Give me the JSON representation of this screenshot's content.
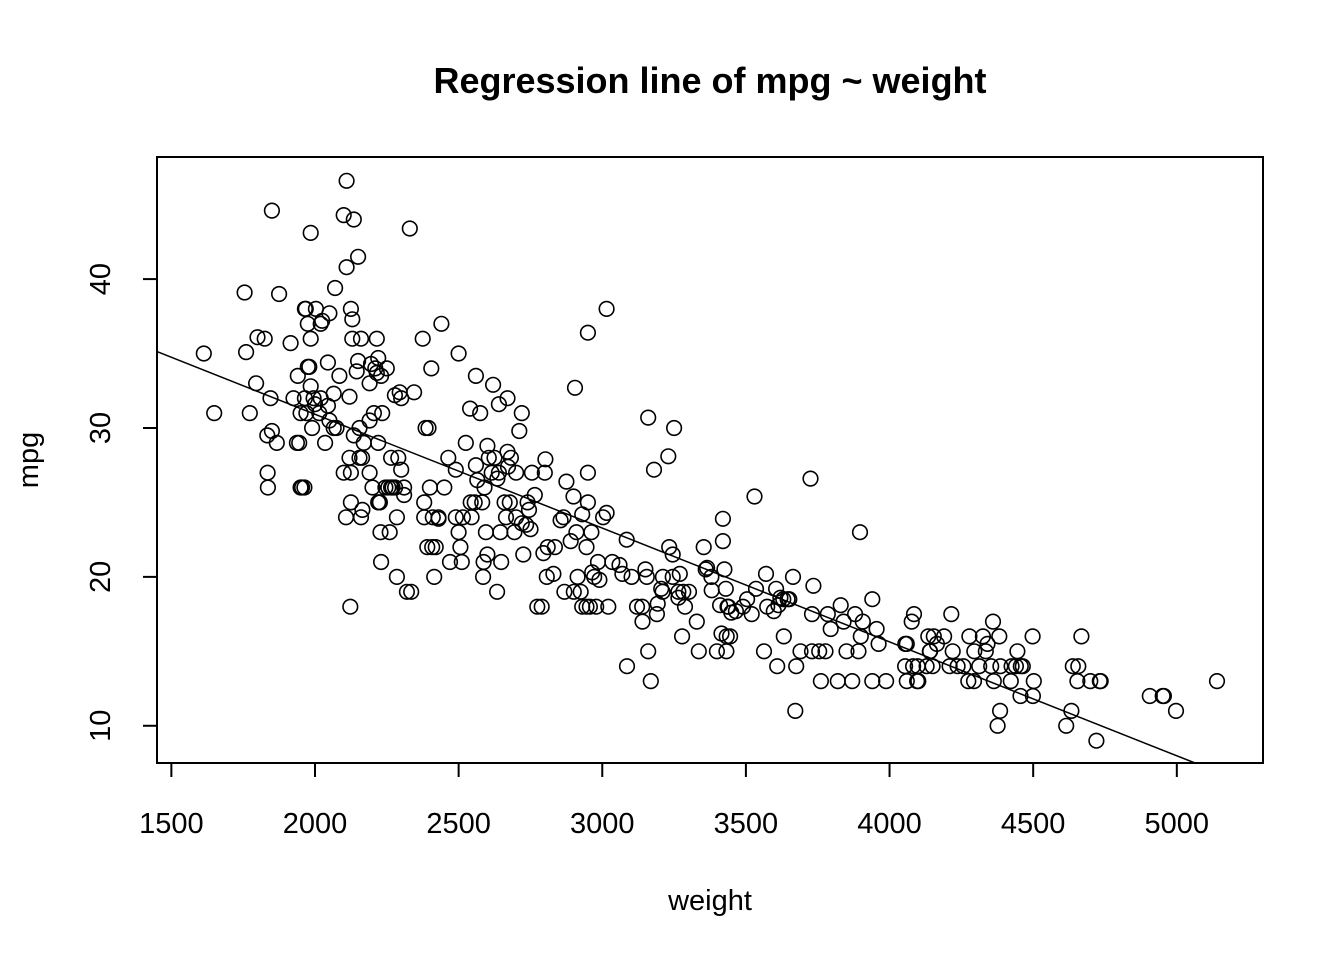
{
  "chart_data": {
    "type": "scatter",
    "title": "Regression line of mpg ~ weight",
    "xlabel": "weight",
    "ylabel": "mpg",
    "xlim": [
      1450,
      5300
    ],
    "ylim": [
      7.5,
      48.2
    ],
    "xticks": [
      1500,
      2000,
      2500,
      3000,
      3500,
      4000,
      4500,
      5000
    ],
    "yticks": [
      10,
      20,
      30,
      40
    ],
    "grid": false,
    "regression_line": {
      "intercept": 46.22,
      "slope": -0.007647
    },
    "points": [
      [
        1613,
        35
      ],
      [
        1649,
        31
      ],
      [
        1755,
        39.1
      ],
      [
        1760,
        35.1
      ],
      [
        1773,
        31
      ],
      [
        1795,
        33
      ],
      [
        1800,
        36.1
      ],
      [
        1825,
        36
      ],
      [
        1834,
        29.5
      ],
      [
        1835,
        27
      ],
      [
        1836,
        26
      ],
      [
        1845,
        32
      ],
      [
        1850,
        44.6
      ],
      [
        1850,
        29.8
      ],
      [
        1867,
        29
      ],
      [
        1875,
        39
      ],
      [
        1915,
        35.7
      ],
      [
        1925,
        32
      ],
      [
        1937,
        29
      ],
      [
        1940,
        33.5
      ],
      [
        1945,
        29
      ],
      [
        1950,
        31
      ],
      [
        1950,
        26
      ],
      [
        1955,
        26
      ],
      [
        1963,
        26
      ],
      [
        1965,
        32
      ],
      [
        1965,
        38
      ],
      [
        1968,
        38
      ],
      [
        1970,
        31
      ],
      [
        1975,
        34.1
      ],
      [
        1975,
        37
      ],
      [
        1980,
        34.1
      ],
      [
        1985,
        36
      ],
      [
        1985,
        32.8
      ],
      [
        1985,
        43.1
      ],
      [
        1990,
        30
      ],
      [
        1995,
        32
      ],
      [
        2000,
        31.6
      ],
      [
        2003,
        38
      ],
      [
        2015,
        31
      ],
      [
        2020,
        37
      ],
      [
        2020,
        32
      ],
      [
        2025,
        37.2
      ],
      [
        2035,
        29
      ],
      [
        2045,
        31.5
      ],
      [
        2045,
        34.4
      ],
      [
        2050,
        37.7
      ],
      [
        2050,
        30.5
      ],
      [
        2065,
        32.3
      ],
      [
        2065,
        30
      ],
      [
        2070,
        39.4
      ],
      [
        2075,
        30
      ],
      [
        2085,
        33.5
      ],
      [
        2100,
        44.3
      ],
      [
        2100,
        27
      ],
      [
        2110,
        46.6
      ],
      [
        2110,
        40.8
      ],
      [
        2108,
        24
      ],
      [
        2120,
        32.1
      ],
      [
        2120,
        28
      ],
      [
        2123,
        18
      ],
      [
        2125,
        38
      ],
      [
        2125,
        25
      ],
      [
        2125,
        27
      ],
      [
        2130,
        37.3
      ],
      [
        2130,
        36
      ],
      [
        2135,
        44
      ],
      [
        2135,
        29.5
      ],
      [
        2145,
        33.8
      ],
      [
        2150,
        41.5
      ],
      [
        2150,
        34.5
      ],
      [
        2155,
        30
      ],
      [
        2155,
        28
      ],
      [
        2160,
        36
      ],
      [
        2160,
        24
      ],
      [
        2164,
        28
      ],
      [
        2165,
        24.5
      ],
      [
        2170,
        29
      ],
      [
        2190,
        33
      ],
      [
        2190,
        30.5
      ],
      [
        2190,
        27
      ],
      [
        2195,
        34.3
      ],
      [
        2200,
        26
      ],
      [
        2205,
        31
      ],
      [
        2210,
        34
      ],
      [
        2215,
        36
      ],
      [
        2215,
        33.7
      ],
      [
        2220,
        34.7
      ],
      [
        2220,
        29
      ],
      [
        2220,
        25
      ],
      [
        2223,
        25
      ],
      [
        2226,
        25
      ],
      [
        2228,
        23
      ],
      [
        2230,
        21
      ],
      [
        2230,
        33.5
      ],
      [
        2234,
        31
      ],
      [
        2245,
        26
      ],
      [
        2250,
        34
      ],
      [
        2255,
        26
      ],
      [
        2260,
        23
      ],
      [
        2265,
        26
      ],
      [
        2265,
        28
      ],
      [
        2270,
        26
      ],
      [
        2278,
        32.2
      ],
      [
        2279,
        26
      ],
      [
        2285,
        24
      ],
      [
        2285,
        20
      ],
      [
        2290,
        28
      ],
      [
        2295,
        32.4
      ],
      [
        2300,
        27.2
      ],
      [
        2300,
        32
      ],
      [
        2310,
        26
      ],
      [
        2310,
        25.5
      ],
      [
        2320,
        19
      ],
      [
        2330,
        43.4
      ],
      [
        2335,
        19
      ],
      [
        2345,
        32.4
      ],
      [
        2375,
        36
      ],
      [
        2380,
        24
      ],
      [
        2380,
        25
      ],
      [
        2385,
        30
      ],
      [
        2391,
        22
      ],
      [
        2395,
        30
      ],
      [
        2400,
        26
      ],
      [
        2405,
        34
      ],
      [
        2408,
        22
      ],
      [
        2410,
        24
      ],
      [
        2415,
        20
      ],
      [
        2420,
        22
      ],
      [
        2430,
        23.9
      ],
      [
        2430,
        24
      ],
      [
        2440,
        37
      ],
      [
        2450,
        26
      ],
      [
        2464,
        28
      ],
      [
        2470,
        21
      ],
      [
        2490,
        24
      ],
      [
        2490,
        27.2
      ],
      [
        2500,
        35
      ],
      [
        2500,
        23
      ],
      [
        2506,
        22
      ],
      [
        2511,
        21
      ],
      [
        2515,
        24
      ],
      [
        2525,
        29
      ],
      [
        2540,
        31.3
      ],
      [
        2542,
        25
      ],
      [
        2545,
        24
      ],
      [
        2556,
        25
      ],
      [
        2560,
        33.5
      ],
      [
        2560,
        27.5
      ],
      [
        2565,
        26.5
      ],
      [
        2575,
        31
      ],
      [
        2582,
        25
      ],
      [
        2585,
        20
      ],
      [
        2587,
        21
      ],
      [
        2590,
        26
      ],
      [
        2595,
        23
      ],
      [
        2600,
        28.8
      ],
      [
        2600,
        21.5
      ],
      [
        2605,
        28
      ],
      [
        2615,
        27
      ],
      [
        2620,
        32.9
      ],
      [
        2625,
        28
      ],
      [
        2634,
        19
      ],
      [
        2635,
        26.6
      ],
      [
        2640,
        31.6
      ],
      [
        2640,
        27
      ],
      [
        2645,
        23
      ],
      [
        2648,
        21
      ],
      [
        2660,
        25
      ],
      [
        2665,
        24
      ],
      [
        2670,
        28.4
      ],
      [
        2670,
        32
      ],
      [
        2672,
        27.4
      ],
      [
        2678,
        25
      ],
      [
        2682,
        28
      ],
      [
        2694,
        23
      ],
      [
        2700,
        27
      ],
      [
        2700,
        24
      ],
      [
        2711,
        29.8
      ],
      [
        2720,
        31
      ],
      [
        2720,
        23.6
      ],
      [
        2725,
        21.5
      ],
      [
        2735,
        23.5
      ],
      [
        2740,
        25
      ],
      [
        2745,
        24.5
      ],
      [
        2750,
        23.2
      ],
      [
        2755,
        27
      ],
      [
        2765,
        25.5
      ],
      [
        2774,
        18
      ],
      [
        2789,
        18
      ],
      [
        2795,
        21.6
      ],
      [
        2800,
        27
      ],
      [
        2802,
        27.9
      ],
      [
        2807,
        20
      ],
      [
        2810,
        22
      ],
      [
        2830,
        20.2
      ],
      [
        2835,
        22
      ],
      [
        2855,
        23.8
      ],
      [
        2865,
        24
      ],
      [
        2868,
        19
      ],
      [
        2875,
        26.4
      ],
      [
        2890,
        22.4
      ],
      [
        2900,
        25.4
      ],
      [
        2901,
        19
      ],
      [
        2905,
        32.7
      ],
      [
        2910,
        23
      ],
      [
        2914,
        20
      ],
      [
        2925,
        19
      ],
      [
        2930,
        24.2
      ],
      [
        2930,
        18
      ],
      [
        2945,
        18
      ],
      [
        2945,
        22
      ],
      [
        2950,
        25
      ],
      [
        2950,
        36.4
      ],
      [
        2950,
        27
      ],
      [
        2957,
        18
      ],
      [
        2962,
        23
      ],
      [
        2965,
        20.3
      ],
      [
        2972,
        20
      ],
      [
        2979,
        18
      ],
      [
        2985,
        21
      ],
      [
        2990,
        19.8
      ],
      [
        3003,
        24
      ],
      [
        3015,
        24.3
      ],
      [
        3015,
        38
      ],
      [
        3021,
        18
      ],
      [
        3035,
        21
      ],
      [
        3060,
        20.8
      ],
      [
        3070,
        20.2
      ],
      [
        3085,
        22.5
      ],
      [
        3086,
        14
      ],
      [
        3102,
        20
      ],
      [
        3121,
        18
      ],
      [
        3139,
        18
      ],
      [
        3140,
        17
      ],
      [
        3150,
        20.5
      ],
      [
        3155,
        20
      ],
      [
        3160,
        30.7
      ],
      [
        3160,
        15
      ],
      [
        3169,
        13
      ],
      [
        3180,
        27.2
      ],
      [
        3190,
        17.5
      ],
      [
        3193,
        18.2
      ],
      [
        3205,
        19.2
      ],
      [
        3210,
        19
      ],
      [
        3211,
        20
      ],
      [
        3230,
        28.1
      ],
      [
        3233,
        22
      ],
      [
        3245,
        20
      ],
      [
        3245,
        21.5
      ],
      [
        3250,
        30
      ],
      [
        3265,
        18.6
      ],
      [
        3265,
        19
      ],
      [
        3270,
        20.2
      ],
      [
        3278,
        16
      ],
      [
        3282,
        19
      ],
      [
        3288,
        18
      ],
      [
        3302,
        19
      ],
      [
        3329,
        17
      ],
      [
        3336,
        15
      ],
      [
        3353,
        22
      ],
      [
        3360,
        20.5
      ],
      [
        3365,
        20.6
      ],
      [
        3380,
        20
      ],
      [
        3381,
        19.1
      ],
      [
        3399,
        15
      ],
      [
        3410,
        18.1
      ],
      [
        3415,
        16.2
      ],
      [
        3420,
        22.4
      ],
      [
        3420,
        23.9
      ],
      [
        3425,
        20.5
      ],
      [
        3430,
        19.2
      ],
      [
        3432,
        15
      ],
      [
        3433,
        16
      ],
      [
        3436,
        18
      ],
      [
        3439,
        18
      ],
      [
        3445,
        16
      ],
      [
        3449,
        17.6
      ],
      [
        3465,
        17.7
      ],
      [
        3490,
        18
      ],
      [
        3504,
        18.5
      ],
      [
        3520,
        17.5
      ],
      [
        3530,
        25.4
      ],
      [
        3535,
        19.2
      ],
      [
        3563,
        15
      ],
      [
        3570,
        20.2
      ],
      [
        3574,
        18
      ],
      [
        3597,
        17.7
      ],
      [
        3605,
        19.2
      ],
      [
        3609,
        14
      ],
      [
        3613,
        18.1
      ],
      [
        3620,
        18.6
      ],
      [
        3630,
        18.5
      ],
      [
        3632,
        16
      ],
      [
        3645,
        18.5
      ],
      [
        3651,
        18.5
      ],
      [
        3664,
        20
      ],
      [
        3672,
        11
      ],
      [
        3675,
        14
      ],
      [
        3690,
        15
      ],
      [
        3725,
        26.6
      ],
      [
        3730,
        15
      ],
      [
        3730,
        17.5
      ],
      [
        3735,
        19.4
      ],
      [
        3755,
        15
      ],
      [
        3761,
        13
      ],
      [
        3777,
        15
      ],
      [
        3785,
        17.5
      ],
      [
        3795,
        16.5
      ],
      [
        3820,
        13
      ],
      [
        3830,
        18.1
      ],
      [
        3840,
        17
      ],
      [
        3850,
        15
      ],
      [
        3870,
        13
      ],
      [
        3880,
        17.5
      ],
      [
        3892,
        15
      ],
      [
        3897,
        23
      ],
      [
        3900,
        16
      ],
      [
        3907,
        17
      ],
      [
        3940,
        18.5
      ],
      [
        3940,
        13
      ],
      [
        3955,
        16.5
      ],
      [
        3962,
        15.5
      ],
      [
        3988,
        13
      ],
      [
        4054,
        14
      ],
      [
        4055,
        15.5
      ],
      [
        4060,
        13
      ],
      [
        4060,
        15.5
      ],
      [
        4077,
        17
      ],
      [
        4082,
        14
      ],
      [
        4085,
        17.5
      ],
      [
        4096,
        13
      ],
      [
        4098,
        14
      ],
      [
        4100,
        13
      ],
      [
        4129,
        14
      ],
      [
        4135,
        16
      ],
      [
        4140,
        15
      ],
      [
        4141,
        15
      ],
      [
        4150,
        14
      ],
      [
        4154,
        16
      ],
      [
        4165,
        15.5
      ],
      [
        4190,
        16
      ],
      [
        4209,
        14
      ],
      [
        4215,
        17.5
      ],
      [
        4220,
        15
      ],
      [
        4237,
        14
      ],
      [
        4257,
        14
      ],
      [
        4274,
        13
      ],
      [
        4278,
        16
      ],
      [
        4294,
        13
      ],
      [
        4295,
        15
      ],
      [
        4312,
        14
      ],
      [
        4325,
        16
      ],
      [
        4335,
        15
      ],
      [
        4341,
        15.5
      ],
      [
        4354,
        14
      ],
      [
        4360,
        17
      ],
      [
        4363,
        13
      ],
      [
        4376,
        10
      ],
      [
        4382,
        16
      ],
      [
        4385,
        11
      ],
      [
        4386,
        14
      ],
      [
        4422,
        13
      ],
      [
        4425,
        14
      ],
      [
        4440,
        14
      ],
      [
        4445,
        15
      ],
      [
        4456,
        12
      ],
      [
        4457,
        14
      ],
      [
        4464,
        14
      ],
      [
        4498,
        16
      ],
      [
        4499,
        12
      ],
      [
        4502,
        13
      ],
      [
        4615,
        10
      ],
      [
        4633,
        11
      ],
      [
        4638,
        14
      ],
      [
        4654,
        13
      ],
      [
        4657,
        14
      ],
      [
        4668,
        16
      ],
      [
        4699,
        13
      ],
      [
        4720,
        9
      ],
      [
        4732,
        13
      ],
      [
        4735,
        13
      ],
      [
        4906,
        12
      ],
      [
        4951,
        12
      ],
      [
        4955,
        12
      ],
      [
        4997,
        11
      ],
      [
        5140,
        13
      ]
    ]
  }
}
